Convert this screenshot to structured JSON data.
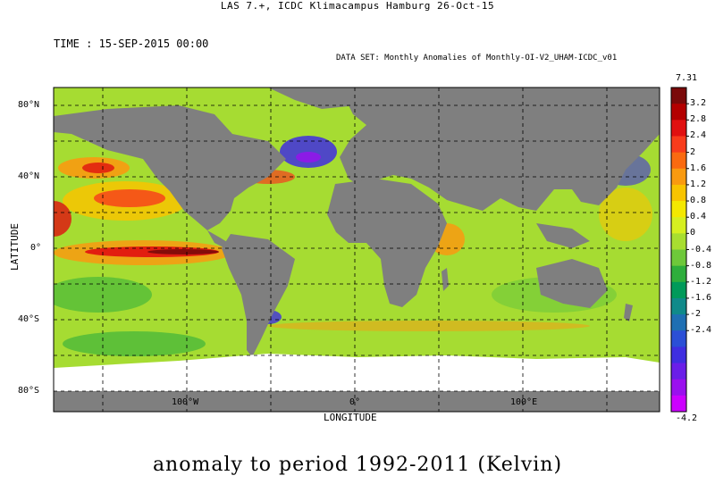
{
  "header": "LAS 7.+, ICDC Klimacampus Hamburg 26-Oct-15",
  "time_label": "TIME : 15-SEP-2015 00:00",
  "dataset_label": "DATA SET: Monthly Anomalies of Monthly-OI-V2_UHAM-ICDC_v01",
  "footer": "anomaly to period 1992-2011 (Kelvin)",
  "map": {
    "latitude_title": "LATITUDE",
    "longitude_title": "LONGITUDE",
    "lat_ticks": [
      {
        "label": "80°N",
        "value": 80
      },
      {
        "label": "40°N",
        "value": 40
      },
      {
        "label": "0°",
        "value": 0
      },
      {
        "label": "40°S",
        "value": -40
      },
      {
        "label": "80°S",
        "value": -80
      }
    ],
    "lon_ticks": [
      {
        "label": "100°W",
        "value": -100
      },
      {
        "label": "0°",
        "value": 0
      },
      {
        "label": "100°E",
        "value": 100
      }
    ],
    "colors": {
      "land": "#7f7f7f",
      "ice": "#ffffff",
      "grid": "#000000"
    }
  },
  "colorbar": {
    "max_label": "7.31",
    "min_label": "-4.2",
    "levels": [
      "3.2",
      "2.8",
      "2.4",
      "2",
      "1.6",
      "1.2",
      "0.8",
      "0.4",
      "0",
      "-0.4",
      "-0.8",
      "-1.2",
      "-1.6",
      "-2",
      "-2.4"
    ],
    "colors": [
      "#7a0a0a",
      "#b30000",
      "#e01010",
      "#f83c1c",
      "#fa6a10",
      "#f99a10",
      "#f8c400",
      "#f4e800",
      "#d6ef20",
      "#a8de30",
      "#6ec83a",
      "#2eae3c",
      "#009a5a",
      "#108a8a",
      "#1f6fb3",
      "#2b4fd6",
      "#3f2ee0",
      "#6a1ee8",
      "#9a10ee",
      "#cc00ff"
    ]
  }
}
